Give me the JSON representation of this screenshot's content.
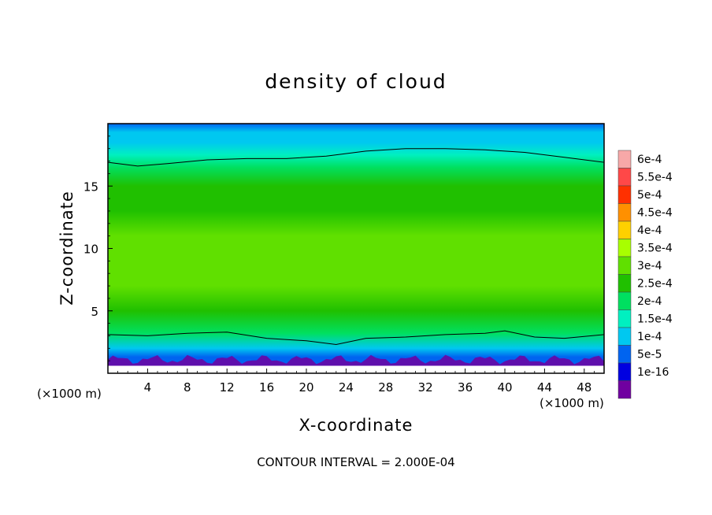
{
  "chart_data": {
    "type": "heatmap",
    "title": "density of cloud",
    "xlabel": "X-coordinate",
    "ylabel": "Z-coordinate",
    "x_unit": "(×1000 m)",
    "y_unit": "(×1000 m)",
    "footer": "CONTOUR INTERVAL = 2.000E-04",
    "xlim": [
      0,
      50
    ],
    "ylim": [
      0,
      20
    ],
    "x_ticks": [
      "4",
      "8",
      "12",
      "16",
      "20",
      "24",
      "28",
      "32",
      "36",
      "40",
      "44",
      "48"
    ],
    "y_ticks": [
      "5",
      "10",
      "15"
    ],
    "colorbar_labels": [
      "6e-4",
      "5.5e-4",
      "5e-4",
      "4.5e-4",
      "4e-4",
      "3.5e-4",
      "3e-4",
      "2.5e-4",
      "2e-4",
      "1.5e-4",
      "1e-4",
      "5e-5",
      "1e-16"
    ],
    "colorbar_colors": [
      "#f7a8a8",
      "#ff4848",
      "#ff3000",
      "#ff9000",
      "#ffd000",
      "#a8ff00",
      "#60e000",
      "#20c000",
      "#00e060",
      "#00f0c0",
      "#00c8f0",
      "#0064f0",
      "#0000e0",
      "#7000a0"
    ],
    "field": {
      "z_levels": [
        0.8,
        1.3,
        2.0,
        3.2,
        5,
        7,
        9,
        11,
        13,
        15,
        16.5,
        17.5,
        18.5,
        19.3,
        20
      ],
      "values": [
        0.5,
        0.8,
        1.2,
        2.0,
        2.7,
        3.1,
        3.2,
        3.1,
        2.9,
        2.6,
        2.2,
        1.8,
        1.4,
        1.0,
        0.7
      ],
      "units": "e-4"
    },
    "contour_upper": {
      "x": [
        0,
        3,
        6,
        10,
        14,
        18,
        22,
        26,
        30,
        34,
        38,
        42,
        46,
        50
      ],
      "z": [
        16.9,
        16.6,
        16.8,
        17.1,
        17.2,
        17.2,
        17.4,
        17.8,
        18.0,
        18.0,
        17.9,
        17.7,
        17.3,
        16.9
      ]
    },
    "contour_lower": {
      "x": [
        0,
        4,
        8,
        12,
        16,
        20,
        23,
        26,
        30,
        34,
        38,
        40,
        43,
        46,
        50
      ],
      "z": [
        3.1,
        3.0,
        3.2,
        3.3,
        2.8,
        2.6,
        2.3,
        2.8,
        2.9,
        3.1,
        3.2,
        3.4,
        2.9,
        2.8,
        3.1
      ]
    }
  }
}
